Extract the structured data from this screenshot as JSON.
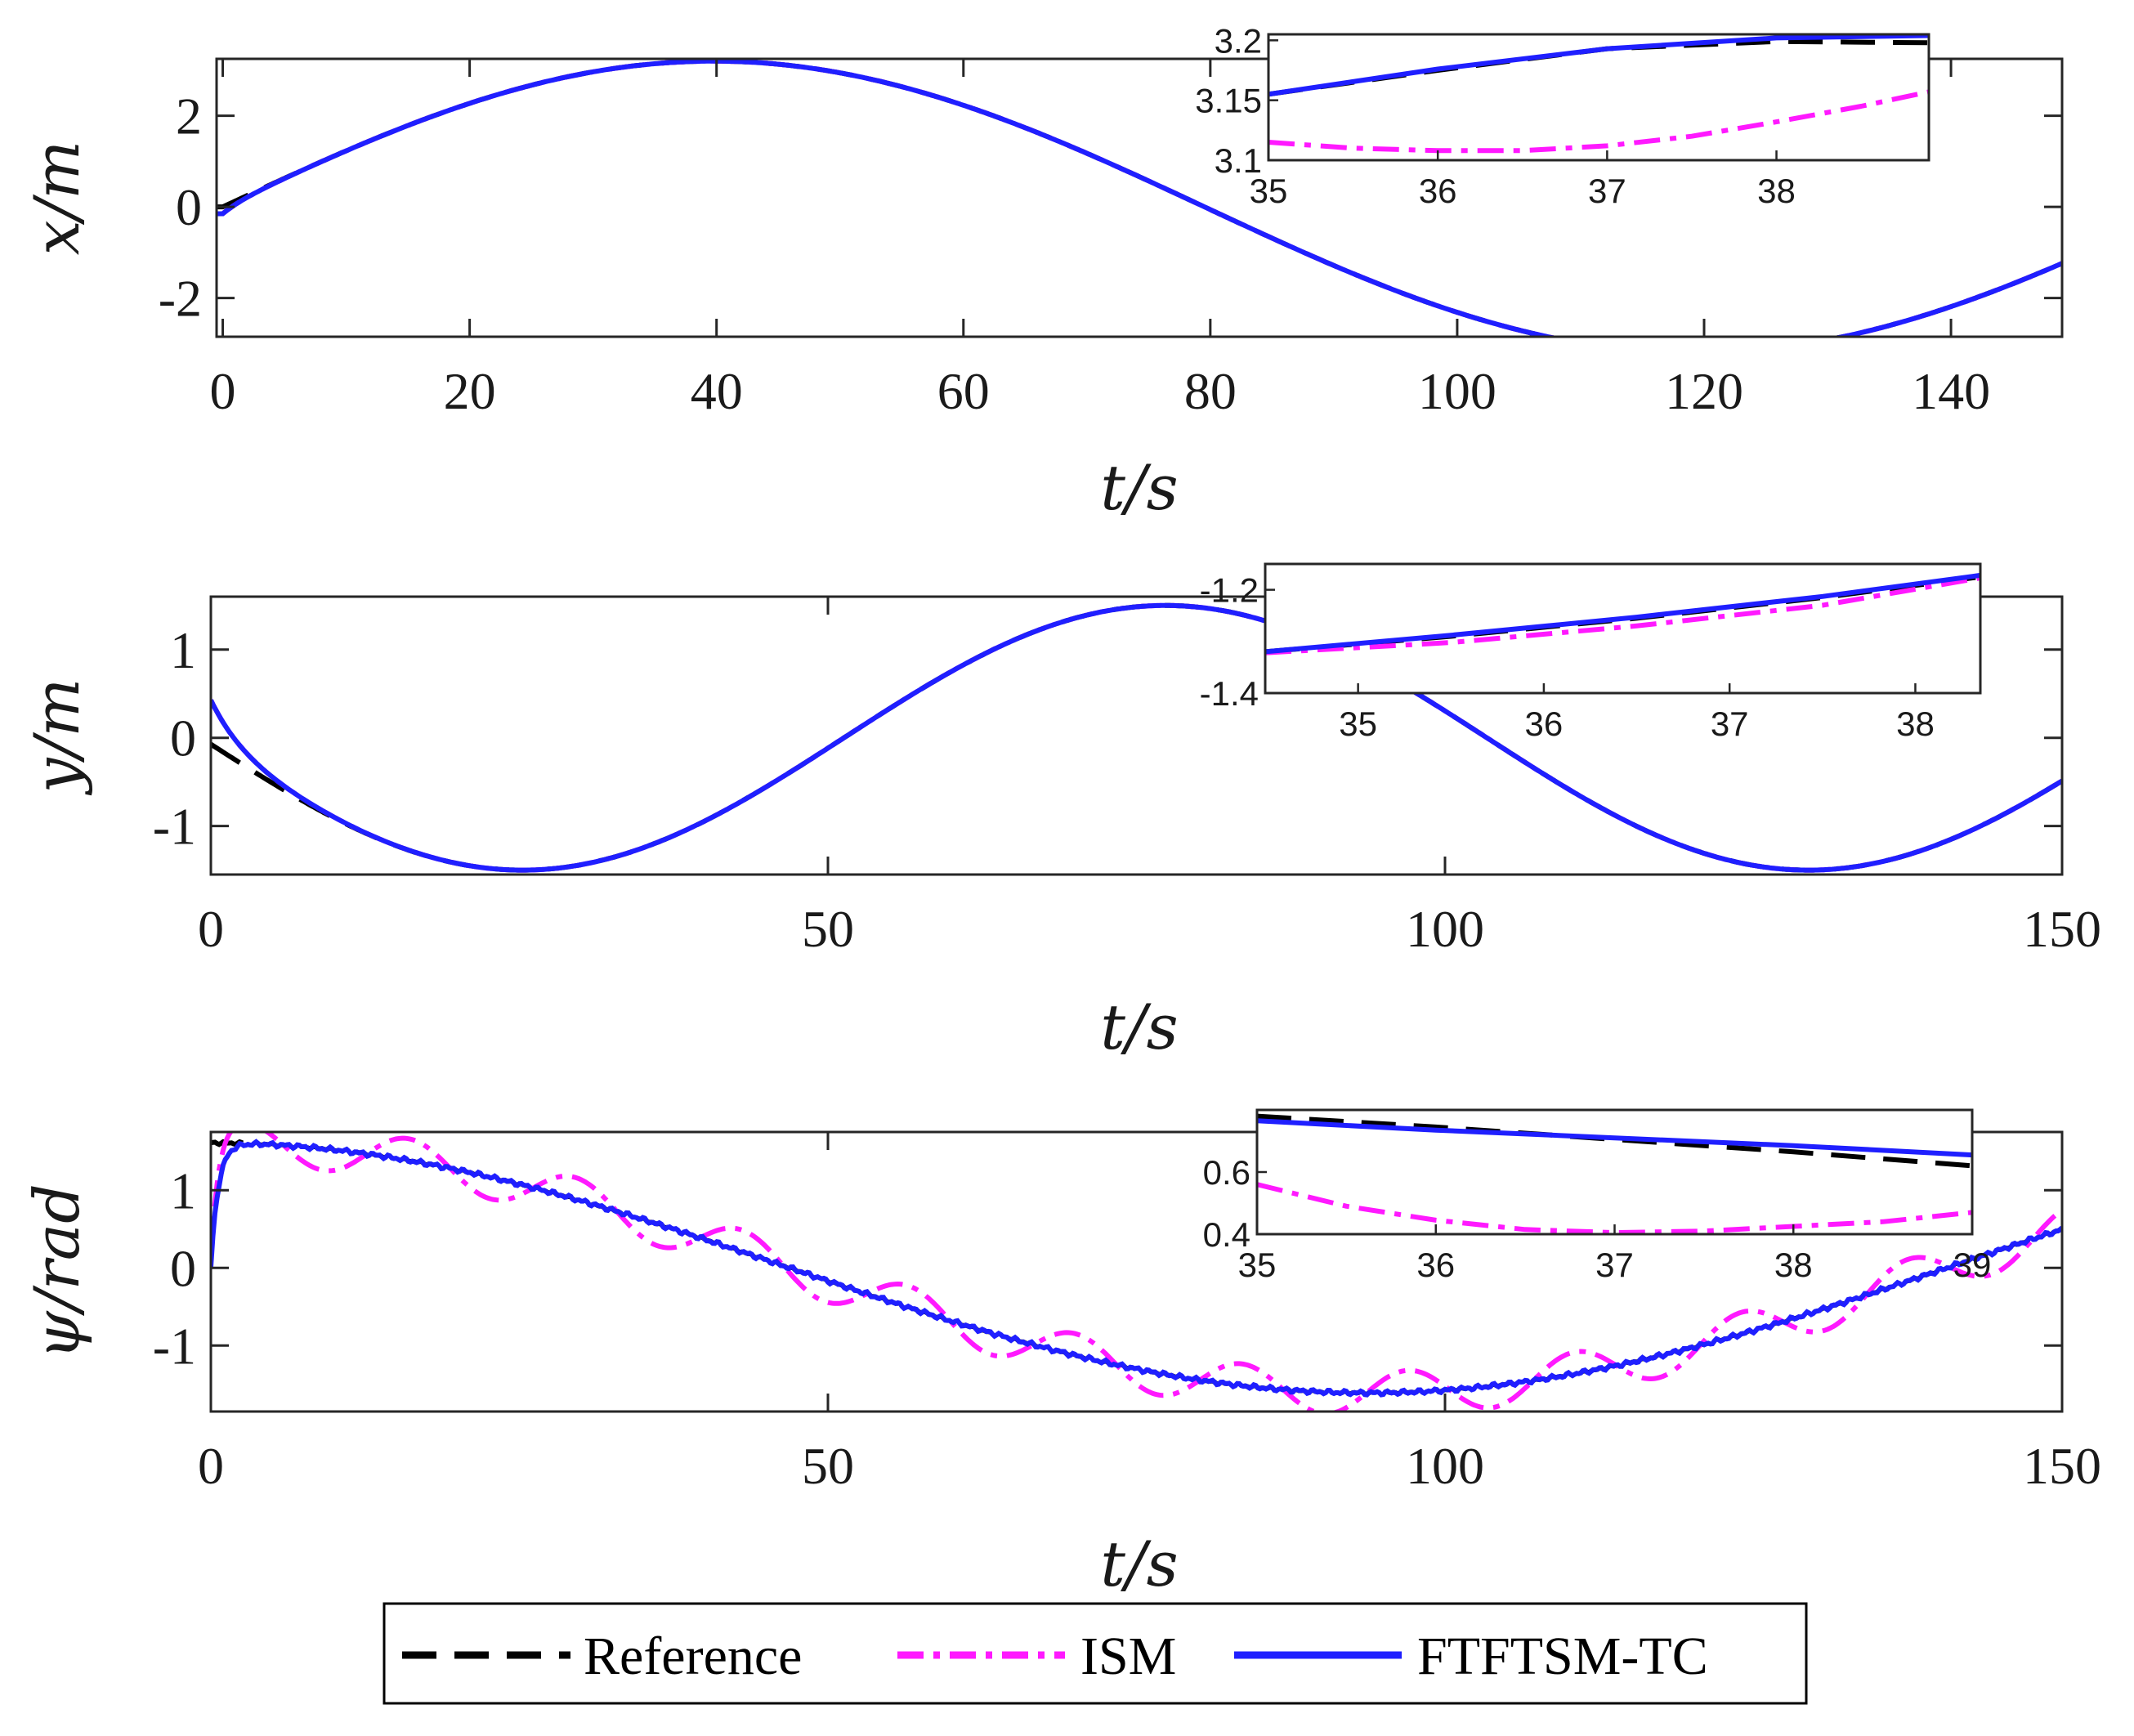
{
  "colors": {
    "reference": "#000000",
    "ism": "#ff19ff",
    "ftftsm": "#1f1fff",
    "axis": "#262626"
  },
  "legend": {
    "items": [
      "Reference",
      "ISM",
      "FTFTSM-TC"
    ],
    "placement": "bottom-center"
  },
  "chart_data": [
    {
      "type": "line",
      "name": "x-position",
      "ylabel": "x/m",
      "xlabel": "t/s",
      "xlim": [
        -0.5,
        149
      ],
      "ylim": [
        -2.85,
        3.25
      ],
      "xticks": [
        0,
        20,
        40,
        60,
        80,
        100,
        120,
        140
      ],
      "yticks": [
        -2,
        0,
        2
      ],
      "xtick_labels": [
        "0",
        "20",
        "40",
        "60",
        "80",
        "100",
        "120",
        "140"
      ],
      "ytick_labels": [
        "-2",
        "0",
        "2"
      ],
      "series": [
        {
          "name": "Reference",
          "style": "dashed",
          "kind": "sin",
          "A": 3.2,
          "w": 0.0395,
          "b": 0,
          "c": 0
        },
        {
          "name": "ISM",
          "style": "dashdot",
          "kind": "sin",
          "A": 3.2,
          "w": 0.0395,
          "b": 0,
          "c": 0,
          "tau": 1.5,
          "e0": -0.15
        },
        {
          "name": "FTFTSM-TC",
          "style": "solid",
          "kind": "sin",
          "A": 3.2,
          "w": 0.0395,
          "b": 0,
          "c": 0,
          "tau": 1.5,
          "e0": -0.15
        }
      ],
      "inset": {
        "xlim": [
          35,
          38.9
        ],
        "ylim": [
          3.1,
          3.205
        ],
        "xticks": [
          35,
          36,
          37,
          38
        ],
        "yticks": [
          3.1,
          3.15,
          3.2
        ],
        "xtick_labels": [
          "35",
          "36",
          "37",
          "38"
        ],
        "ytick_labels": [
          "3.1",
          "3.15",
          "3.2"
        ],
        "series": [
          {
            "name": "Reference",
            "x": [
              35,
              36,
              37,
              38,
              38.9
            ],
            "y": [
              3.155,
              3.175,
              3.193,
              3.199,
              3.198
            ]
          },
          {
            "name": "ISM",
            "x": [
              35,
              35.5,
              36,
              36.5,
              37,
              37.5,
              38,
              38.5,
              38.9
            ],
            "y": [
              3.115,
              3.11,
              3.108,
              3.108,
              3.112,
              3.12,
              3.132,
              3.145,
              3.157
            ]
          },
          {
            "name": "FTFTSM-TC",
            "x": [
              35,
              36,
              37,
              38,
              38.9
            ],
            "y": [
              3.155,
              3.176,
              3.193,
              3.202,
              3.204
            ]
          }
        ]
      }
    },
    {
      "type": "line",
      "name": "y-position",
      "ylabel": "y/m",
      "xlabel": "t/s",
      "xlim": [
        0,
        150
      ],
      "ylim": [
        -1.55,
        1.6
      ],
      "xticks": [
        0,
        50,
        100,
        150
      ],
      "yticks": [
        -1,
        0,
        1
      ],
      "xtick_labels": [
        "0",
        "50",
        "100",
        "150"
      ],
      "ytick_labels": [
        "-1",
        "0",
        "1"
      ],
      "series": [
        {
          "name": "Reference",
          "style": "dashed",
          "kind": "sin",
          "A": 1.5,
          "w": 0.0603,
          "b": 3.19,
          "c": 0
        },
        {
          "name": "ISM",
          "style": "dashdot",
          "kind": "sin",
          "A": 1.5,
          "w": 0.0603,
          "b": 3.19,
          "c": 0,
          "tau": 2.5,
          "e0": 0.5
        },
        {
          "name": "FTFTSM-TC",
          "style": "solid",
          "kind": "sin",
          "A": 1.5,
          "w": 0.0603,
          "b": 3.19,
          "c": 0,
          "tau": 2.5,
          "e0": 0.5
        }
      ],
      "inset": {
        "xlim": [
          34.5,
          38.35
        ],
        "ylim": [
          -1.4,
          -1.15
        ],
        "xticks": [
          35,
          36,
          37,
          38
        ],
        "yticks": [
          -1.4,
          -1.2
        ],
        "xtick_labels": [
          "35",
          "36",
          "37",
          "38"
        ],
        "ytick_labels": [
          "-1.4",
          "-1.2"
        ],
        "series": [
          {
            "name": "Reference",
            "x": [
              34.5,
              35.5,
              36.5,
              37.5,
              38.35
            ],
            "y": [
              -1.32,
              -1.29,
              -1.255,
              -1.215,
              -1.175
            ]
          },
          {
            "name": "ISM",
            "x": [
              34.5,
              35.5,
              36.5,
              37.5,
              38.35
            ],
            "y": [
              -1.322,
              -1.302,
              -1.27,
              -1.23,
              -1.177
            ]
          },
          {
            "name": "FTFTSM-TC",
            "x": [
              34.5,
              35.5,
              36.5,
              37.5,
              38.35
            ],
            "y": [
              -1.32,
              -1.288,
              -1.253,
              -1.213,
              -1.172
            ]
          }
        ]
      }
    },
    {
      "type": "line",
      "name": "heading",
      "ylabel": "ψ/rad",
      "xlabel": "t/s",
      "xlim": [
        0,
        150
      ],
      "ylim": [
        -1.85,
        1.75
      ],
      "xticks": [
        0,
        50,
        100,
        150
      ],
      "yticks": [
        -1,
        0,
        1
      ],
      "xtick_labels": [
        "0",
        "50",
        "100",
        "150"
      ],
      "ytick_labels": [
        "-1",
        "0",
        "1"
      ],
      "series": [
        {
          "name": "Reference",
          "style": "dashed",
          "kind": "cos",
          "A": 1.61,
          "w": 0.0335,
          "b": 0,
          "c": 0,
          "noise": 0.02
        },
        {
          "name": "ISM",
          "style": "dashdot",
          "kind": "cos",
          "A": 1.61,
          "w": 0.0335,
          "b": 0,
          "c": 0,
          "tau": 0.6,
          "e0": -1.6,
          "osc_amp": 0.28,
          "osc_period": 13.5,
          "osc_phase": 0.4
        },
        {
          "name": "FTFTSM-TC",
          "style": "solid",
          "kind": "cos",
          "A": 1.61,
          "w": 0.0335,
          "b": 0,
          "c": 0,
          "tau": 0.6,
          "e0": -1.6,
          "noise": 0.03
        }
      ],
      "inset": {
        "xlim": [
          35,
          39
        ],
        "ylim": [
          0.4,
          0.8
        ],
        "xticks": [
          35,
          36,
          37,
          38,
          39
        ],
        "yticks": [
          0.4,
          0.6
        ],
        "xtick_labels": [
          "35",
          "36",
          "37",
          "38",
          "39"
        ],
        "ytick_labels": [
          "0.4",
          "0.6"
        ],
        "series": [
          {
            "name": "Reference",
            "x": [
              35,
              36,
              37,
              38,
              39
            ],
            "y": [
              0.78,
              0.745,
              0.705,
              0.665,
              0.62
            ]
          },
          {
            "name": "ISM",
            "x": [
              35,
              35.5,
              36,
              36.5,
              37,
              37.5,
              38,
              38.5,
              39
            ],
            "y": [
              0.56,
              0.49,
              0.445,
              0.415,
              0.405,
              0.41,
              0.425,
              0.44,
              0.47
            ]
          },
          {
            "name": "FTFTSM-TC",
            "x": [
              35,
              36,
              37,
              38,
              39
            ],
            "y": [
              0.765,
              0.735,
              0.71,
              0.685,
              0.655
            ]
          }
        ]
      }
    }
  ]
}
